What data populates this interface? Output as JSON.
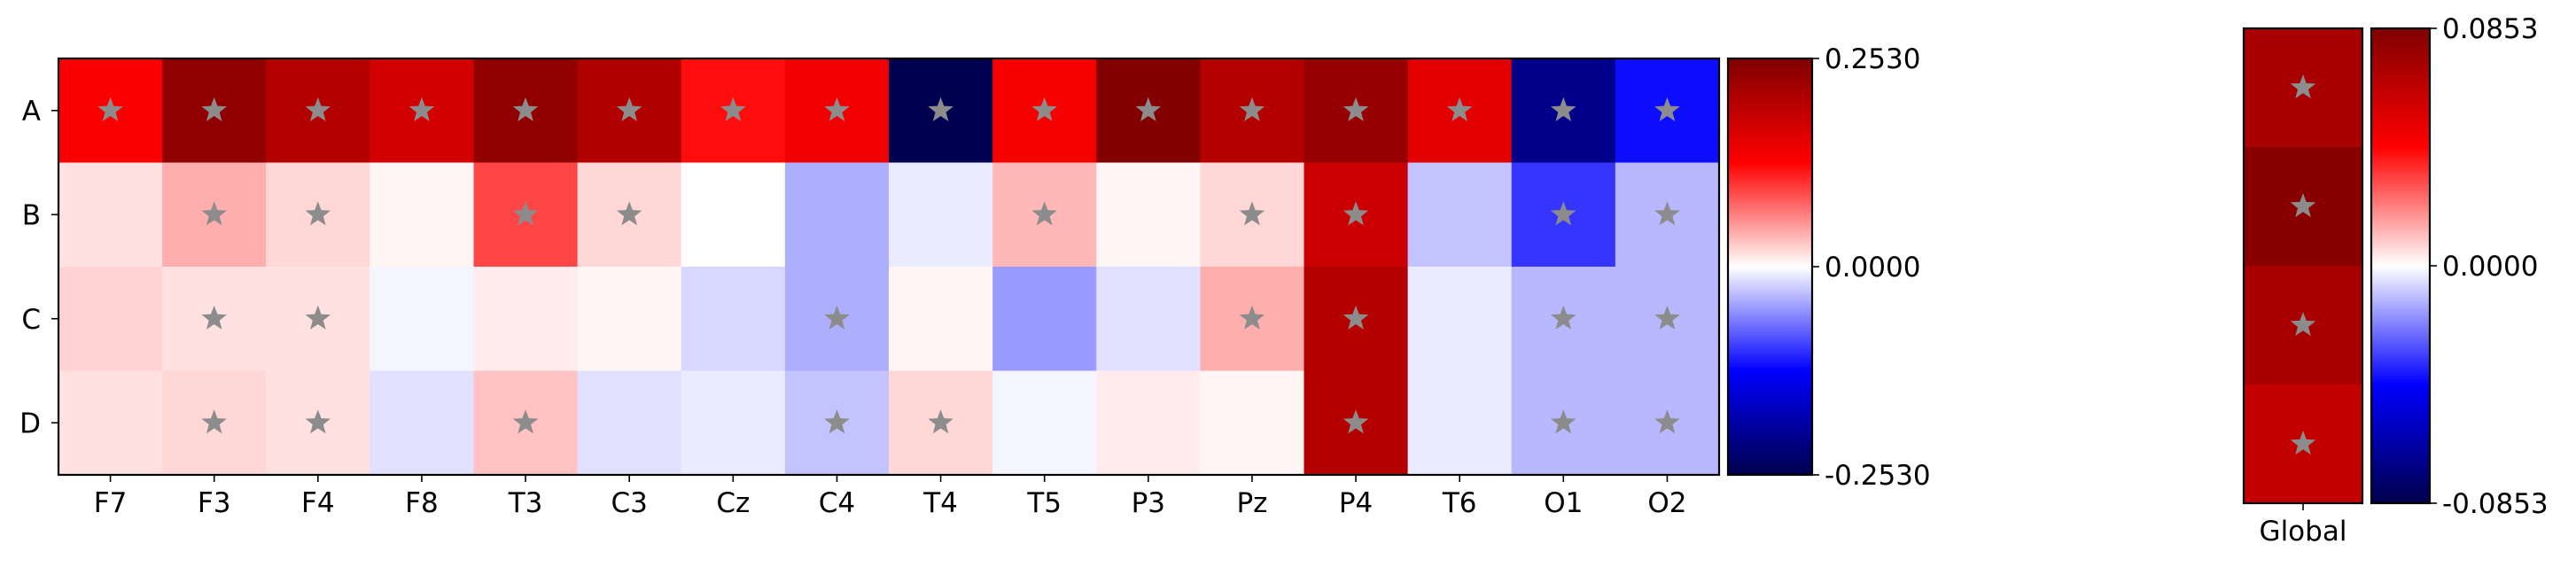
{
  "chart_data": [
    {
      "type": "heatmap",
      "title": "",
      "xlabel": "",
      "ylabel": "",
      "x_categories": [
        "F7",
        "F3",
        "F4",
        "F8",
        "T3",
        "C3",
        "Cz",
        "C4",
        "T4",
        "T5",
        "P3",
        "Pz",
        "P4",
        "T6",
        "O1",
        "O2"
      ],
      "y_categories": [
        "A",
        "B",
        "C",
        "D"
      ],
      "colormap": "seismic",
      "vmin": -0.253,
      "vmax": 0.253,
      "colorbar_ticks": [
        "0.2530",
        "0.0000",
        "-0.2530"
      ],
      "values": [
        [
          0.13,
          0.237,
          0.2,
          0.17,
          0.237,
          0.205,
          0.12,
          0.14,
          -0.25,
          0.135,
          0.25,
          0.2,
          0.23,
          0.155,
          -0.21,
          -0.12
        ],
        [
          0.015,
          0.04,
          0.02,
          0.005,
          0.092,
          0.02,
          0.0,
          -0.04,
          -0.01,
          0.035,
          0.005,
          0.02,
          0.178,
          -0.03,
          -0.1,
          -0.035
        ],
        [
          0.022,
          0.015,
          0.015,
          -0.005,
          0.01,
          0.005,
          -0.02,
          -0.04,
          0.005,
          -0.05,
          -0.015,
          0.04,
          0.2,
          -0.01,
          -0.035,
          -0.035
        ],
        [
          0.015,
          0.02,
          0.015,
          -0.015,
          0.03,
          -0.015,
          -0.01,
          -0.03,
          0.02,
          -0.005,
          0.01,
          0.005,
          0.2,
          -0.01,
          -0.035,
          -0.035
        ]
      ],
      "significant": [
        [
          1,
          1,
          1,
          1,
          1,
          1,
          1,
          1,
          1,
          1,
          1,
          1,
          1,
          1,
          1,
          1
        ],
        [
          0,
          1,
          1,
          0,
          1,
          1,
          0,
          0,
          0,
          1,
          0,
          1,
          1,
          0,
          1,
          1
        ],
        [
          0,
          1,
          1,
          0,
          0,
          0,
          0,
          1,
          0,
          0,
          0,
          1,
          1,
          0,
          1,
          1
        ],
        [
          0,
          1,
          1,
          0,
          1,
          0,
          0,
          1,
          1,
          0,
          0,
          0,
          1,
          0,
          1,
          1
        ]
      ],
      "marker": "star",
      "marker_color": "#8c8c8c"
    },
    {
      "type": "heatmap",
      "title": "",
      "x_categories": [
        "Global"
      ],
      "y_categories": [
        "A",
        "B",
        "C",
        "D"
      ],
      "colormap": "seismic",
      "vmin": -0.0853,
      "vmax": 0.0853,
      "colorbar_ticks": [
        "0.0853",
        "0.0000",
        "-0.0853"
      ],
      "values": [
        [
          0.072
        ],
        [
          0.082
        ],
        [
          0.072
        ],
        [
          0.063
        ]
      ],
      "significant": [
        [
          1
        ],
        [
          1
        ],
        [
          1
        ],
        [
          1
        ]
      ],
      "marker": "star",
      "marker_color": "#8c8c8c"
    }
  ]
}
